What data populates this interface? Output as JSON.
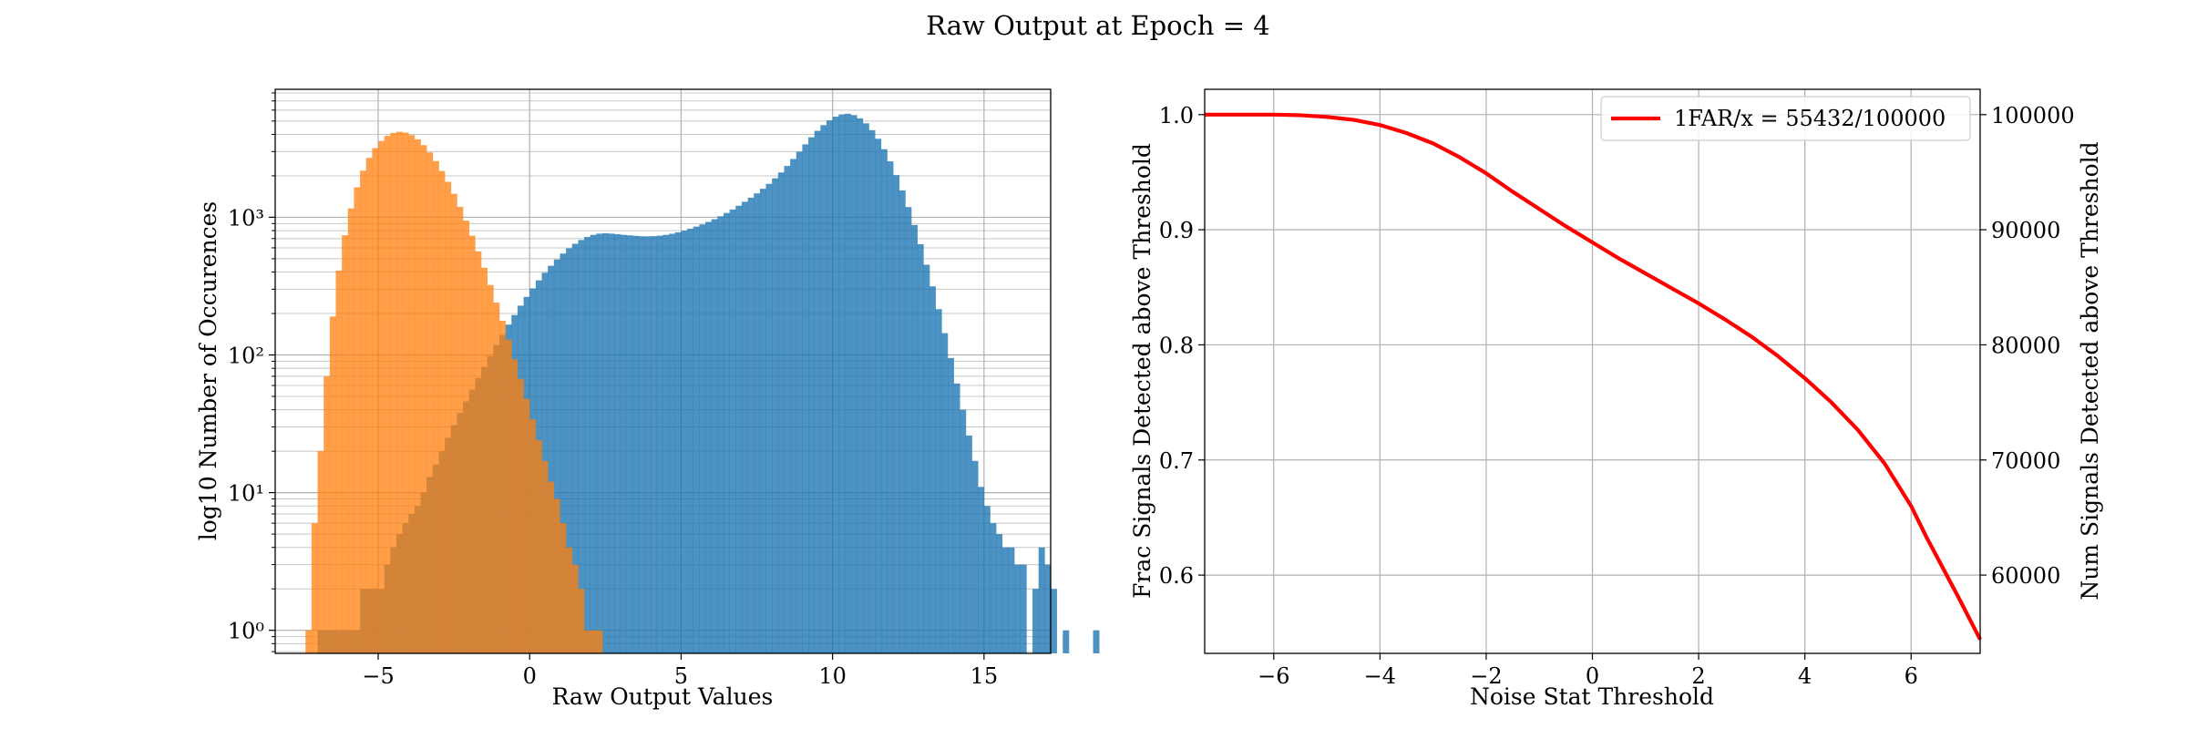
{
  "figure": {
    "suptitle": "Raw Output at Epoch = 4"
  },
  "chart_data": [
    {
      "type": "histogram",
      "log_scale_y": true,
      "xlabel": "Raw Output Values",
      "ylabel": "log10 Number of Occurences",
      "xlim": [
        -8.4,
        17.2
      ],
      "ylim": [
        0.68,
        8500
      ],
      "x_ticks": [
        -5,
        0,
        5,
        10,
        15
      ],
      "x_tick_labels": [
        "−5",
        "0",
        "5",
        "10",
        "15"
      ],
      "y_ticks": [
        1,
        10,
        100,
        1000
      ],
      "y_tick_labels": [
        "10⁰",
        "10¹",
        "10²",
        "10³"
      ],
      "grid": true,
      "bin_width": 0.2,
      "series": [
        {
          "color": "#1f77b4",
          "x_start": -7.0,
          "counts": [
            1,
            1,
            1,
            1,
            1,
            1,
            1,
            2,
            2,
            2,
            2,
            3,
            4,
            5,
            6,
            7,
            8,
            10,
            13,
            16,
            20,
            25,
            31,
            38,
            46,
            56,
            68,
            82,
            98,
            118,
            140,
            166,
            195,
            228,
            264,
            304,
            348,
            395,
            444,
            494,
            545,
            595,
            642,
            684,
            719,
            745,
            760,
            765,
            761,
            753,
            745,
            739,
            733,
            728,
            727,
            729,
            735,
            745,
            759,
            777,
            800,
            826,
            855,
            888,
            925,
            968,
            1017,
            1074,
            1139,
            1213,
            1296,
            1388,
            1491,
            1611,
            1750,
            1917,
            2116,
            2357,
            2650,
            2994,
            3384,
            3810,
            4245,
            4667,
            5055,
            5378,
            5588,
            5647,
            5523,
            5233,
            4810,
            4292,
            3716,
            3123,
            2548,
            2024,
            1567,
            1186,
            879,
            637,
            452,
            315,
            215,
            144,
            95,
            62,
            40,
            26,
            17,
            11,
            8,
            6,
            5,
            4,
            4,
            3,
            3,
            0,
            2,
            4,
            3,
            2,
            0,
            1,
            0,
            0,
            0,
            0,
            1,
            0
          ]
        },
        {
          "color": "#ff7f0e",
          "x_start": -7.4,
          "counts": [
            1,
            6,
            20,
            70,
            190,
            410,
            740,
            1160,
            1650,
            2180,
            2700,
            3180,
            3580,
            3900,
            4100,
            4180,
            4120,
            3950,
            3680,
            3340,
            2960,
            2560,
            2170,
            1810,
            1480,
            1190,
            945,
            735,
            565,
            430,
            322,
            240,
            177,
            129,
            93,
            67,
            48,
            34,
            24,
            17,
            12,
            9,
            6,
            4,
            3,
            2,
            1,
            1,
            1
          ]
        }
      ]
    },
    {
      "type": "line",
      "xlabel": "Noise Stat Threshold",
      "ylabel": "Frac Signals Detected above Threshold",
      "ylabel_right": "Num Signals Detected above Threshold",
      "xlim": [
        -7.3,
        7.3
      ],
      "ylim": [
        0.532,
        1.022
      ],
      "ylim_right": [
        53200,
        102200
      ],
      "x_ticks": [
        -6,
        -4,
        -2,
        0,
        2,
        4,
        6
      ],
      "x_tick_labels": [
        "−6",
        "−4",
        "−2",
        "0",
        "2",
        "4",
        "6"
      ],
      "y_ticks": [
        0.6,
        0.7,
        0.8,
        0.9,
        1.0
      ],
      "y_tick_labels": [
        "0.6",
        "0.7",
        "0.8",
        "0.9",
        "1.0"
      ],
      "y_ticks_right": [
        60000,
        70000,
        80000,
        90000,
        100000
      ],
      "y_tick_labels_right": [
        "60000",
        "70000",
        "80000",
        "90000",
        "100000"
      ],
      "grid": true,
      "legend_position": "top-right",
      "series": [
        {
          "name": "1FAR/x = 55432/100000",
          "color": "#ff0000",
          "x": [
            -7.3,
            -6.5,
            -6.0,
            -5.5,
            -5.0,
            -4.5,
            -4.0,
            -3.5,
            -3.0,
            -2.5,
            -2.0,
            -1.5,
            -1.0,
            -0.5,
            0.0,
            0.5,
            1.0,
            1.5,
            2.0,
            2.5,
            3.0,
            3.5,
            4.0,
            4.5,
            5.0,
            5.5,
            6.0,
            6.3,
            6.6,
            6.9,
            7.1,
            7.3
          ],
          "y": [
            1.0,
            1.0,
            1.0,
            0.9995,
            0.998,
            0.9955,
            0.991,
            0.984,
            0.975,
            0.963,
            0.949,
            0.933,
            0.918,
            0.903,
            0.889,
            0.875,
            0.862,
            0.849,
            0.836,
            0.822,
            0.807,
            0.79,
            0.771,
            0.75,
            0.726,
            0.697,
            0.66,
            0.632,
            0.606,
            0.58,
            0.562,
            0.544
          ]
        }
      ]
    }
  ]
}
